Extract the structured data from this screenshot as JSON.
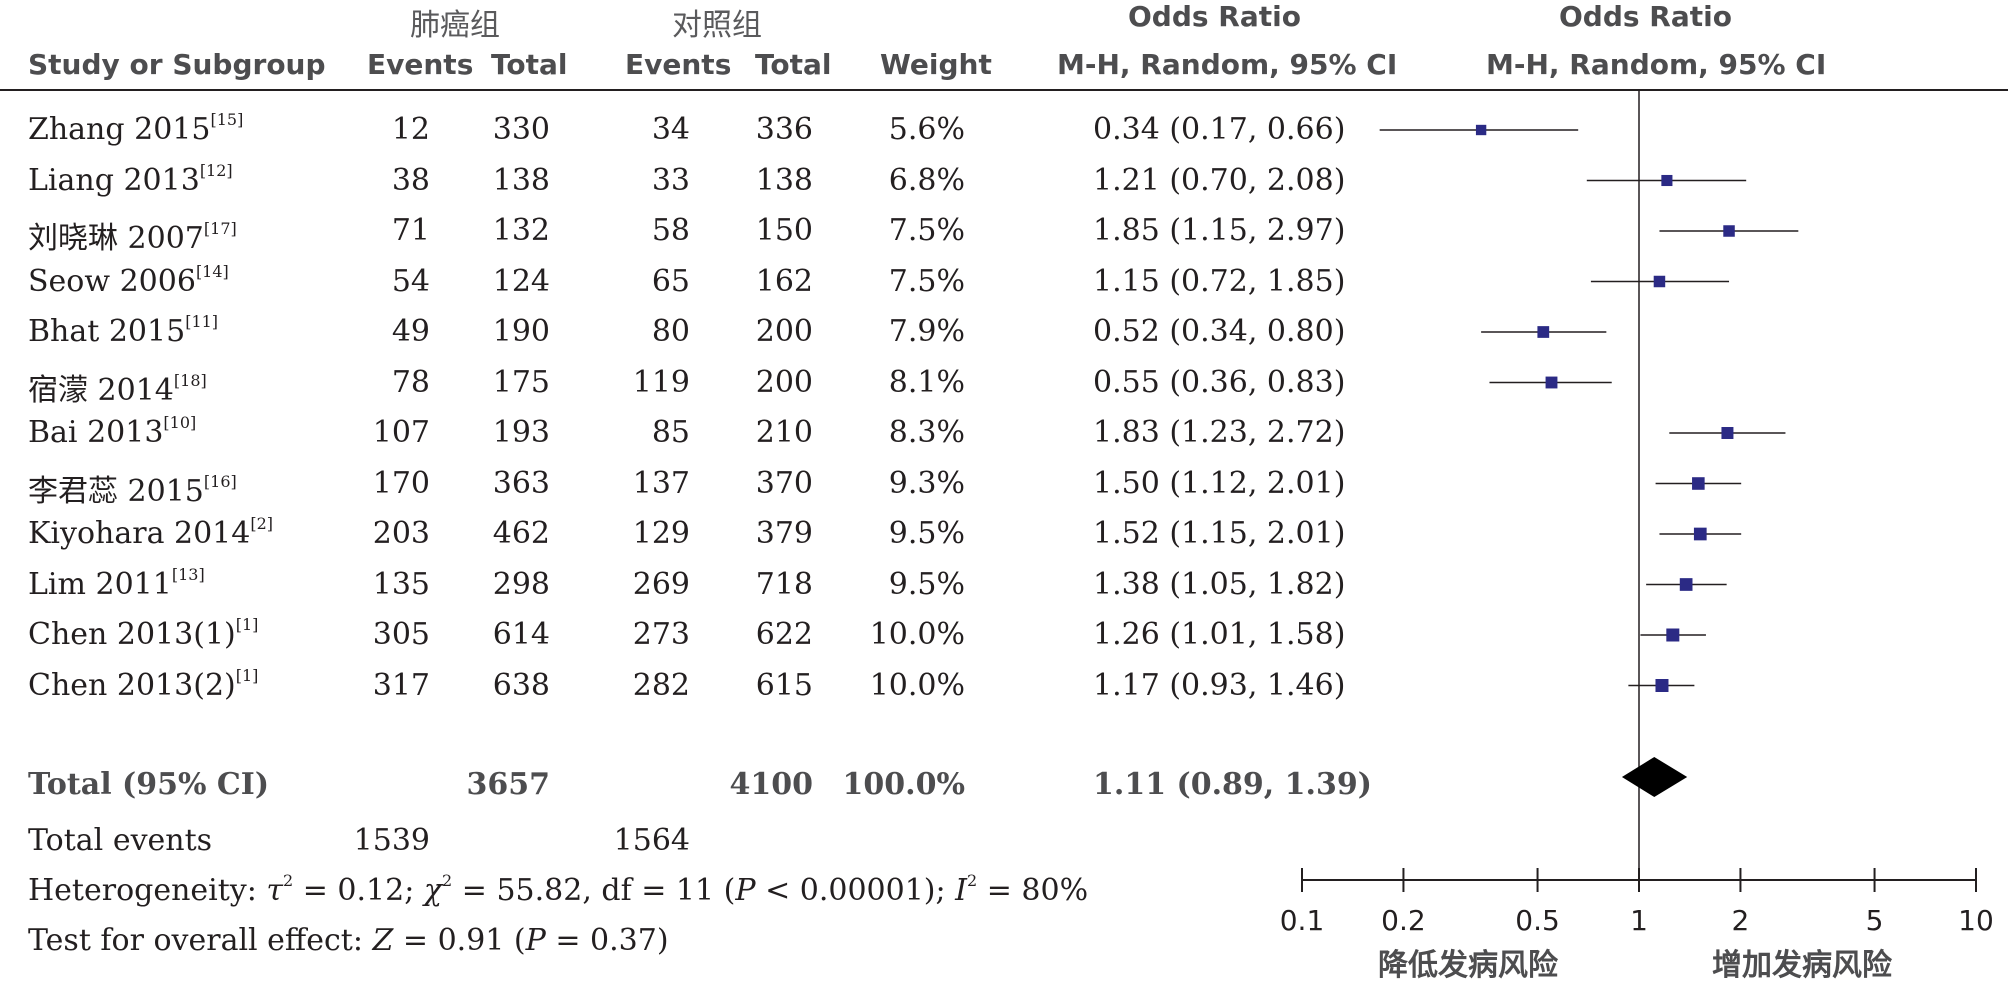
{
  "header": {
    "group1": "肺癌组",
    "group2": "对照组",
    "or_title": "Odds Ratio",
    "study_col": "Study or Subgroup",
    "events1": "Events",
    "total1": "Total",
    "events2": "Events",
    "total2": "Total",
    "weight": "Weight",
    "method": "M-H, Random, 95% CI",
    "plot_title": "Odds Ratio",
    "plot_method": "M-H, Random, 95% CI"
  },
  "rows": [
    {
      "name": "Zhang 2015",
      "ref": "[15]",
      "e1": "12",
      "t1": "330",
      "e2": "34",
      "t2": "336",
      "weight": "5.6%",
      "ci": "0.34 (0.17, 0.66)"
    },
    {
      "name": "Liang 2013",
      "ref": "[12]",
      "e1": "38",
      "t1": "138",
      "e2": "33",
      "t2": "138",
      "weight": "6.8%",
      "ci": "1.21 (0.70, 2.08)"
    },
    {
      "name": "刘晓琳 2007",
      "ref": "[17]",
      "e1": "71",
      "t1": "132",
      "e2": "58",
      "t2": "150",
      "weight": "7.5%",
      "ci": "1.85 (1.15, 2.97)"
    },
    {
      "name": "Seow 2006",
      "ref": "[14]",
      "e1": "54",
      "t1": "124",
      "e2": "65",
      "t2": "162",
      "weight": "7.5%",
      "ci": "1.15 (0.72, 1.85)"
    },
    {
      "name": "Bhat 2015",
      "ref": "[11]",
      "e1": "49",
      "t1": "190",
      "e2": "80",
      "t2": "200",
      "weight": "7.9%",
      "ci": "0.52 (0.34, 0.80)"
    },
    {
      "name": "宿濛 2014",
      "ref": "[18]",
      "e1": "78",
      "t1": "175",
      "e2": "119",
      "t2": "200",
      "weight": "8.1%",
      "ci": "0.55 (0.36, 0.83)"
    },
    {
      "name": "Bai 2013",
      "ref": "[10]",
      "e1": "107",
      "t1": "193",
      "e2": "85",
      "t2": "210",
      "weight": "8.3%",
      "ci": "1.83 (1.23, 2.72)"
    },
    {
      "name": "李君蕊 2015",
      "ref": "[16]",
      "e1": "170",
      "t1": "363",
      "e2": "137",
      "t2": "370",
      "weight": "9.3%",
      "ci": "1.50 (1.12, 2.01)"
    },
    {
      "name": "Kiyohara 2014",
      "ref": "[2]",
      "e1": "203",
      "t1": "462",
      "e2": "129",
      "t2": "379",
      "weight": "9.5%",
      "ci": "1.52 (1.15, 2.01)"
    },
    {
      "name": "Lim 2011",
      "ref": "[13]",
      "e1": "135",
      "t1": "298",
      "e2": "269",
      "t2": "718",
      "weight": "9.5%",
      "ci": "1.38 (1.05, 1.82)"
    },
    {
      "name": "Chen 2013(1)",
      "ref": "[1]",
      "e1": "305",
      "t1": "614",
      "e2": "273",
      "t2": "622",
      "weight": "10.0%",
      "ci": "1.26 (1.01, 1.58)"
    },
    {
      "name": "Chen 2013(2)",
      "ref": "[1]",
      "e1": "317",
      "t1": "638",
      "e2": "282",
      "t2": "615",
      "weight": "10.0%",
      "ci": "1.17 (0.93, 1.46)"
    }
  ],
  "total": {
    "label": "Total (95% CI)",
    "t1": "3657",
    "t2": "4100",
    "weight": "100.0%",
    "ci": "1.11 (0.89, 1.39)"
  },
  "total_events": {
    "label": "Total events",
    "e1": "1539",
    "e2": "1564"
  },
  "heterogeneity": {
    "prefix": "Heterogeneity: ",
    "tau": "τ",
    "tau_val": " = 0.12; ",
    "chi": "χ",
    "chi_val": " = 55.82, df = 11 (",
    "p": "P",
    "p_val": " < 0.00001); ",
    "i": "I",
    "i_val": " = 80%"
  },
  "overall": {
    "prefix": "Test for overall effect: ",
    "z": "Z",
    "z_val": " = 0.91 (",
    "p": "P",
    "p_val": " = 0.37)"
  },
  "axis": {
    "favours_left": "降低发病风险",
    "favours_right": "增加发病风险"
  },
  "chart_data": {
    "type": "forest",
    "scale": "log",
    "xlim": [
      0.1,
      10
    ],
    "ticks": [
      {
        "value": 0.1,
        "label": "0.1"
      },
      {
        "value": 0.2,
        "label": "0.2"
      },
      {
        "value": 0.5,
        "label": "0.5"
      },
      {
        "value": 1,
        "label": "1"
      },
      {
        "value": 2,
        "label": "2"
      },
      {
        "value": 5,
        "label": "5"
      },
      {
        "value": 10,
        "label": "10"
      }
    ],
    "reference_line": 1,
    "studies": [
      {
        "or": 0.34,
        "lo": 0.17,
        "hi": 0.66,
        "weight": 5.6
      },
      {
        "or": 1.21,
        "lo": 0.7,
        "hi": 2.08,
        "weight": 6.8
      },
      {
        "or": 1.85,
        "lo": 1.15,
        "hi": 2.97,
        "weight": 7.5
      },
      {
        "or": 1.15,
        "lo": 0.72,
        "hi": 1.85,
        "weight": 7.5
      },
      {
        "or": 0.52,
        "lo": 0.34,
        "hi": 0.8,
        "weight": 7.9
      },
      {
        "or": 0.55,
        "lo": 0.36,
        "hi": 0.83,
        "weight": 8.1
      },
      {
        "or": 1.83,
        "lo": 1.23,
        "hi": 2.72,
        "weight": 8.3
      },
      {
        "or": 1.5,
        "lo": 1.12,
        "hi": 2.01,
        "weight": 9.3
      },
      {
        "or": 1.52,
        "lo": 1.15,
        "hi": 2.01,
        "weight": 9.5
      },
      {
        "or": 1.38,
        "lo": 1.05,
        "hi": 1.82,
        "weight": 9.5
      },
      {
        "or": 1.26,
        "lo": 1.01,
        "hi": 1.58,
        "weight": 10.0
      },
      {
        "or": 1.17,
        "lo": 0.93,
        "hi": 1.46,
        "weight": 10.0
      }
    ],
    "pooled": {
      "or": 1.11,
      "lo": 0.89,
      "hi": 1.39
    },
    "marker_color": "#2b2a85"
  }
}
